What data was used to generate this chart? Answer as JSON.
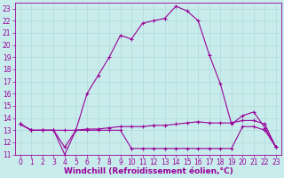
{
  "xlabel": "Windchill (Refroidissement éolien,°C)",
  "background_color": "#c8ecec",
  "grid_color": "#b0d8d8",
  "line_color": "#990099",
  "xlim": [
    -0.5,
    23.5
  ],
  "ylim": [
    11,
    23.5
  ],
  "yticks": [
    11,
    12,
    13,
    14,
    15,
    16,
    17,
    18,
    19,
    20,
    21,
    22,
    23
  ],
  "xticks": [
    0,
    1,
    2,
    3,
    4,
    5,
    6,
    7,
    8,
    9,
    10,
    11,
    12,
    13,
    14,
    15,
    16,
    17,
    18,
    19,
    20,
    21,
    22,
    23
  ],
  "temp_x": [
    0,
    1,
    2,
    3,
    4,
    5,
    6,
    7,
    8,
    9,
    10,
    11,
    12,
    13,
    14,
    15,
    16,
    17,
    18,
    19,
    20,
    21,
    22,
    23
  ],
  "temp_y": [
    13.5,
    13.0,
    13.0,
    13.0,
    11.0,
    13.0,
    16.0,
    17.5,
    19.0,
    20.8,
    20.5,
    21.8,
    22.0,
    22.2,
    23.2,
    22.8,
    22.0,
    19.2,
    16.8,
    13.5,
    14.2,
    14.5,
    13.2,
    11.6
  ],
  "flat1_x": [
    0,
    1,
    2,
    3,
    4,
    5,
    6,
    7,
    8,
    9,
    10,
    11,
    12,
    13,
    14,
    15,
    16,
    17,
    18,
    19,
    20,
    21,
    22,
    23
  ],
  "flat1_y": [
    13.5,
    13.0,
    13.0,
    13.0,
    13.0,
    13.0,
    13.1,
    13.1,
    13.2,
    13.3,
    13.3,
    13.3,
    13.4,
    13.4,
    13.5,
    13.6,
    13.7,
    13.6,
    13.6,
    13.6,
    13.8,
    13.8,
    13.5,
    11.6
  ],
  "flat2_x": [
    0,
    1,
    2,
    3,
    4,
    5,
    6,
    7,
    8,
    9,
    10,
    11,
    12,
    13,
    14,
    15,
    16,
    17,
    18,
    19,
    20,
    21,
    22,
    23
  ],
  "flat2_y": [
    13.5,
    13.0,
    13.0,
    13.0,
    11.6,
    13.0,
    13.0,
    13.0,
    13.0,
    13.0,
    11.5,
    11.5,
    11.5,
    11.5,
    11.5,
    11.5,
    11.5,
    11.5,
    11.5,
    11.5,
    13.3,
    13.3,
    13.0,
    11.6
  ],
  "xlabel_fontsize": 6.5,
  "tick_fontsize": 5.5,
  "linewidth": 0.8,
  "markersize": 3.0
}
